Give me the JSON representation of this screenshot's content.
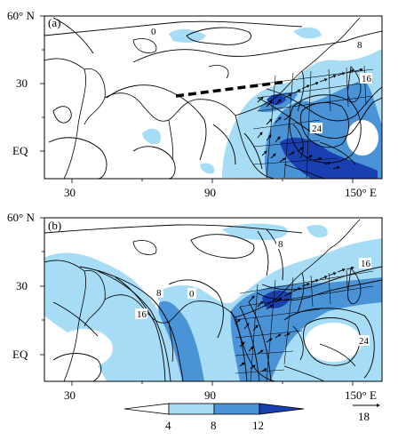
{
  "panels": [
    {
      "label": "(a)",
      "lat_labels": [
        "60° N",
        "30",
        "EQ"
      ],
      "lon_labels": [
        "30",
        "90",
        "150° E"
      ],
      "contour_labels": [
        "0",
        "8",
        "16",
        "24"
      ]
    },
    {
      "label": "(b)",
      "lat_labels": [
        "60° N",
        "30",
        "EQ"
      ],
      "lon_labels": [
        "30",
        "90",
        "150° E"
      ],
      "contour_labels": [
        "0",
        "8",
        "16",
        "8",
        "16",
        "24"
      ]
    }
  ],
  "colorbar": {
    "ticks": [
      "4",
      "8",
      "12"
    ],
    "colors": [
      "#ffffff",
      "#a6dcf5",
      "#4a93d6",
      "#1a3fb0"
    ]
  },
  "reference_vector": {
    "label": "18"
  },
  "colors": {
    "shade_light": "#a6dcf5",
    "shade_mid": "#4a93d6",
    "shade_dark": "#1a3fb0",
    "ink": "#000000"
  }
}
